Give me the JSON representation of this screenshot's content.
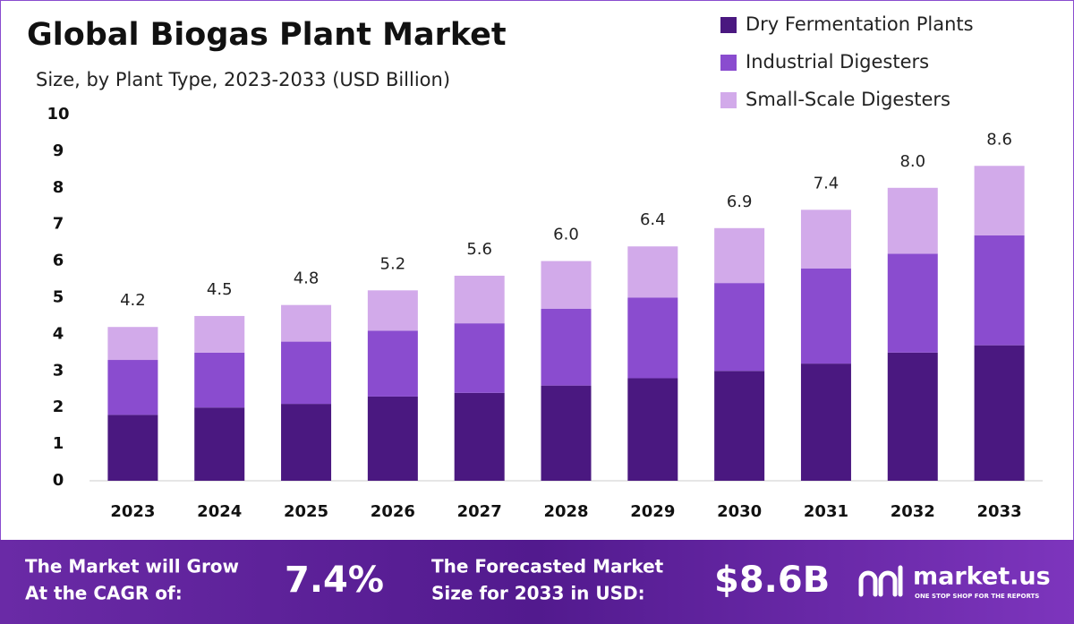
{
  "chart_data": {
    "type": "stacked_bar",
    "title": "Global Biogas Plant Market",
    "subtitle": "Size, by Plant Type, 2023-2033 (USD Billion)",
    "categories": [
      "2023",
      "2024",
      "2025",
      "2026",
      "2027",
      "2028",
      "2029",
      "2030",
      "2031",
      "2032",
      "2033"
    ],
    "series": [
      {
        "name": "Dry Fermentation Plants",
        "color": "#4a1880",
        "values": [
          1.8,
          2.0,
          2.1,
          2.3,
          2.4,
          2.6,
          2.8,
          3.0,
          3.2,
          3.5,
          3.7
        ]
      },
      {
        "name": "Industrial Digesters",
        "color": "#8a4ccf",
        "values": [
          1.5,
          1.5,
          1.7,
          1.8,
          1.9,
          2.1,
          2.2,
          2.4,
          2.6,
          2.7,
          3.0
        ]
      },
      {
        "name": "Small-Scale Digesters",
        "color": "#d2aaea",
        "values": [
          0.9,
          1.0,
          1.0,
          1.1,
          1.3,
          1.3,
          1.4,
          1.5,
          1.6,
          1.8,
          1.9
        ]
      }
    ],
    "totals": [
      4.2,
      4.5,
      4.8,
      5.2,
      5.6,
      6.0,
      6.4,
      6.9,
      7.4,
      8.0,
      8.6
    ],
    "value_labels": [
      "4.2",
      "4.5",
      "4.8",
      "5.2",
      "5.6",
      "6.0",
      "6.4",
      "6.9",
      "7.4",
      "8.0",
      "8.6"
    ],
    "ylim": [
      0,
      10
    ],
    "yticks": [
      0,
      1,
      2,
      3,
      4,
      5,
      6,
      7,
      8,
      9,
      10
    ],
    "grid": false,
    "legend": "top-right"
  },
  "footer": {
    "cagr_text": [
      "The Market will Grow",
      "At the CAGR of:"
    ],
    "cagr": "7.4%",
    "forecast_text": [
      "The Forecasted Market",
      "Size for 2033 in USD:"
    ],
    "forecast": "$8.6B",
    "brand": "market.us",
    "tagline": "ONE STOP SHOP FOR THE REPORTS"
  }
}
